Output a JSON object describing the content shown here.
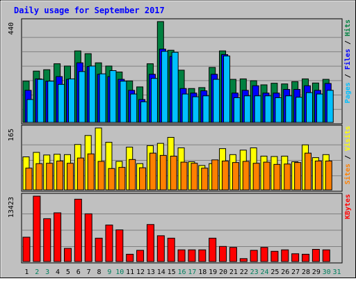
{
  "chart_data": {
    "type": "bar",
    "title": "Daily usage for September 2017",
    "categories": [
      "1",
      "2",
      "3",
      "4",
      "5",
      "6",
      "7",
      "8",
      "9",
      "10",
      "11",
      "12",
      "13",
      "14",
      "15",
      "16",
      "17",
      "18",
      "19",
      "20",
      "21",
      "22",
      "23",
      "24",
      "25",
      "26",
      "27",
      "28",
      "29",
      "30",
      "31"
    ],
    "weekend_days": [
      "2",
      "3",
      "9",
      "10",
      "16",
      "17",
      "23",
      "24",
      "30",
      "31"
    ],
    "panels": [
      {
        "id": "top",
        "ymax": 440,
        "max_label": "440",
        "axis_label_parts": [
          {
            "text": "Pages",
            "color": "#00C0FF"
          },
          {
            "text": " / ",
            "color": "#000000"
          },
          {
            "text": "Files",
            "color": "#0000FF"
          },
          {
            "text": " / ",
            "color": "#000000"
          },
          {
            "text": "Hits",
            "color": "#008040"
          }
        ],
        "series": [
          {
            "name": "Hits",
            "color": "#008040",
            "values": [
              180,
              224,
              230,
              256,
              246,
              312,
              300,
              260,
              246,
              220,
              181,
              155,
              256,
              440,
              315,
              228,
              148,
              152,
              240,
              312,
              188,
              190,
              182,
              164,
              171,
              168,
              178,
              190,
              172,
              188,
              0
            ]
          },
          {
            "name": "Files",
            "color": "#0000FF",
            "values": [
              140,
              190,
              180,
              200,
              188,
              260,
              244,
              210,
              200,
              188,
              140,
              100,
              210,
              320,
              288,
              148,
              128,
              138,
              210,
              296,
              128,
              140,
              160,
              128,
              128,
              144,
              144,
              160,
              140,
              170,
              0
            ]
          },
          {
            "name": "Pages",
            "color": "#00C0FF",
            "values": [
              100,
              188,
              180,
              166,
              190,
              222,
              246,
              212,
              226,
              180,
              124,
              90,
              192,
              310,
              306,
              124,
              112,
              116,
              188,
              290,
              108,
              116,
              116,
              116,
              108,
              116,
              110,
              130,
              124,
              140,
              0
            ]
          }
        ]
      },
      {
        "id": "middle",
        "ymax": 165,
        "max_label": "165",
        "axis_label_parts": [
          {
            "text": "Sites",
            "color": "#FF8000"
          },
          {
            "text": " / ",
            "color": "#000000"
          },
          {
            "text": "Visits",
            "color": "#FFFF00"
          }
        ],
        "series": [
          {
            "name": "Visits",
            "color": "#FFFF00",
            "values": [
              88,
              100,
              93,
              95,
              94,
              121,
              145,
              165,
              127,
              76,
              114,
              70,
              118,
              124,
              140,
              112,
              75,
              65,
              70,
              110,
              94,
              106,
              112,
              90,
              89,
              90,
              75,
              120,
              86,
              94,
              0
            ]
          },
          {
            "name": "Sites",
            "color": "#FF8000",
            "values": [
              58,
              70,
              71,
              77,
              71,
              85,
              96,
              76,
              57,
              60,
              81,
              59,
              98,
              92,
              90,
              74,
              71,
              58,
              80,
              77,
              73,
              76,
              71,
              74,
              68,
              69,
              73,
              98,
              77,
              77,
              0
            ]
          }
        ]
      },
      {
        "id": "bottom",
        "ymax": 13423,
        "max_label": "13423",
        "axis_label_parts": [
          {
            "text": "KBytes",
            "color": "#FF0000"
          }
        ],
        "series": [
          {
            "name": "KBytes",
            "color": "#FF0000",
            "values": [
              5000,
              13423,
              8800,
              10000,
              2700,
              12800,
              9800,
              4800,
              7500,
              6500,
              1500,
              2300,
              7600,
              5300,
              4800,
              2400,
              2400,
              2400,
              4800,
              3100,
              2900,
              600,
              2300,
              2900,
              2100,
              2400,
              1600,
              1500,
              2500,
              2400,
              0
            ]
          }
        ]
      }
    ]
  }
}
